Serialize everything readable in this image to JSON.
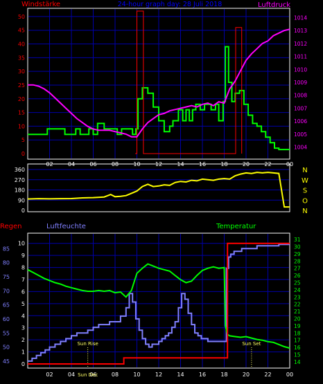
{
  "header": {
    "left_label": "Windstärke",
    "title": "24-hour graph day: 28 Juli 2018",
    "right_label": "Luftdruck"
  },
  "colors": {
    "background": "#000000",
    "frame": "#ffffff",
    "grid": "#0000aa",
    "wind": "#00ff00",
    "gust": "#ff0000",
    "pressure": "#ff00ff",
    "direction": "#ffff00",
    "direction_labels": "#ffff00",
    "rain": "#ff0000",
    "humidity": "#8080ff",
    "temperature": "#00ff00",
    "temperature_axis": "#00ff00",
    "left_axis_red": "#ff0000",
    "sun_marker": "#ffff66",
    "title": "#0000ff"
  },
  "bottom_header": {
    "rain_label": "Regen",
    "humidity_label": "Luftfeuchte",
    "temperature_label": "Temperatur"
  },
  "time_ticks": [
    "02",
    "04",
    "06",
    "08",
    "10",
    "12",
    "14",
    "16",
    "18",
    "20",
    "22",
    "00"
  ],
  "sun_labels": {
    "sun_rise": "Sun Rise",
    "sun_set": "Sun Set",
    "sun_dec": "Sun Dec"
  },
  "chart_data": [
    {
      "type": "line",
      "x_label": "hour",
      "xlim": [
        0,
        24
      ],
      "left_axis": {
        "label": "Windstärke",
        "ticks": [
          0,
          5,
          10,
          15,
          20,
          25,
          30,
          35,
          40,
          45,
          50
        ],
        "ylim": [
          0,
          52
        ]
      },
      "right_axis": {
        "label": "Luftdruck",
        "ticks": [
          1004,
          1005,
          1006,
          1007,
          1008,
          1009,
          1010,
          1011,
          1012,
          1013,
          1014
        ],
        "ylim": [
          1003.5,
          1014.5
        ]
      },
      "series": [
        {
          "name": "wind",
          "axis": "left",
          "step": true,
          "x": [
            0,
            1.8,
            3.4,
            4.4,
            4.8,
            5.6,
            6.0,
            6.4,
            7.0,
            8.2,
            8.6,
            9.6,
            9.9,
            10.1,
            10.5,
            11.0,
            11.5,
            12.0,
            12.5,
            13.0,
            13.3,
            13.8,
            14.2,
            14.5,
            14.8,
            15.1,
            15.4,
            15.8,
            16.2,
            16.8,
            17.2,
            17.5,
            17.9,
            18.1,
            18.4,
            18.7,
            19.0,
            19.4,
            19.8,
            20.2,
            20.6,
            21.0,
            21.4,
            21.8,
            22.2,
            22.6,
            23.0,
            24.0
          ],
          "values": [
            7,
            9,
            7,
            9,
            7,
            9,
            7,
            11,
            9,
            7,
            9,
            7,
            9,
            20,
            24,
            22,
            17,
            12,
            8,
            10,
            12,
            16,
            12,
            16,
            12,
            16,
            18,
            16,
            18,
            16,
            18,
            12,
            19,
            39,
            26,
            19,
            22,
            23,
            18,
            14,
            11,
            10,
            8,
            6,
            4,
            2,
            1.5,
            1.5
          ]
        },
        {
          "name": "gust",
          "axis": "left",
          "step": true,
          "x": [
            9.85,
            10.0,
            10.45,
            10.6,
            18.85,
            19.05,
            19.45,
            19.6
          ],
          "values": [
            0,
            52,
            52,
            0,
            0,
            46,
            46,
            0
          ]
        },
        {
          "name": "pressure",
          "axis": "right",
          "x": [
            0,
            0.5,
            1,
            1.5,
            2,
            2.5,
            3,
            3.5,
            4,
            4.5,
            5,
            5.5,
            6,
            6.5,
            7,
            7.5,
            8,
            8.5,
            9,
            9.5,
            10,
            10.5,
            11,
            11.5,
            12,
            12.5,
            13,
            13.5,
            14,
            14.5,
            15,
            15.5,
            16,
            16.5,
            17,
            17.5,
            18,
            18.5,
            19,
            19.5,
            20,
            20.5,
            21,
            21.5,
            22,
            22.5,
            23,
            23.5,
            24
          ],
          "values": [
            1008.8,
            1008.8,
            1008.7,
            1008.5,
            1008.2,
            1007.8,
            1007.4,
            1007.0,
            1006.6,
            1006.2,
            1005.9,
            1005.6,
            1005.4,
            1005.3,
            1005.3,
            1005.3,
            1005.2,
            1005.1,
            1005.0,
            1004.8,
            1004.8,
            1005.4,
            1005.9,
            1006.2,
            1006.5,
            1006.6,
            1006.8,
            1006.9,
            1007.0,
            1007.1,
            1007.2,
            1007.1,
            1007.3,
            1007.4,
            1007.2,
            1007.5,
            1007.4,
            1008.5,
            1009.1,
            1009.9,
            1010.7,
            1011.2,
            1011.6,
            1012.0,
            1012.2,
            1012.6,
            1012.8,
            1013.0,
            1013.1
          ]
        }
      ]
    },
    {
      "type": "line",
      "x_label": "hour",
      "xlim": [
        0,
        24
      ],
      "left_axis": {
        "ticks": [
          0,
          90,
          180,
          270,
          360
        ],
        "ylim": [
          0,
          360
        ]
      },
      "right_labels": [
        "N",
        "W",
        "S",
        "O",
        "N"
      ],
      "series": [
        {
          "name": "wind direction",
          "x": [
            0,
            1.0,
            2.0,
            3.0,
            4.0,
            5.0,
            6.0,
            7.0,
            7.6,
            8.0,
            8.5,
            9.0,
            9.5,
            10.0,
            10.5,
            11.0,
            11.5,
            12.0,
            12.5,
            13.0,
            13.5,
            14.0,
            14.5,
            15.0,
            15.5,
            16.0,
            16.5,
            17.0,
            17.5,
            18.0,
            18.5,
            19.0,
            19.5,
            20.0,
            20.5,
            21.0,
            21.5,
            22.0,
            22.5,
            23.0,
            23.5,
            24.0
          ],
          "values": [
            100,
            103,
            101,
            103,
            104,
            110,
            112,
            118,
            140,
            120,
            123,
            130,
            150,
            170,
            210,
            230,
            210,
            215,
            225,
            220,
            245,
            255,
            250,
            265,
            260,
            275,
            270,
            265,
            275,
            280,
            275,
            305,
            320,
            330,
            325,
            335,
            330,
            335,
            330,
            325,
            30,
            30
          ]
        }
      ]
    },
    {
      "type": "line",
      "x_label": "hour",
      "xlim": [
        0,
        24
      ],
      "left_axis_rain": {
        "label": "Regen",
        "ticks": [
          0,
          1,
          2,
          3,
          4,
          5,
          6,
          7,
          8,
          9,
          10
        ],
        "ylim": [
          0,
          10.5
        ]
      },
      "left_axis_humidity": {
        "label": "Luftfeuchte",
        "ticks": [
          45,
          50,
          55,
          60,
          65,
          70,
          75,
          80,
          85
        ],
        "ylim": [
          44,
          89
        ]
      },
      "right_axis": {
        "label": "Temperatur",
        "ticks": [
          14,
          15,
          16,
          17,
          18,
          19,
          20,
          21,
          22,
          23,
          24,
          25,
          26,
          27,
          28,
          29,
          30,
          31
        ],
        "ylim": [
          13.7,
          31.3
        ]
      },
      "sun_markers": {
        "sun_rise": 5.5,
        "sun_set": 20.5
      },
      "series": [
        {
          "name": "rain",
          "axis": "rain",
          "step": true,
          "x": [
            0,
            8.8,
            18.1,
            18.3,
            24
          ],
          "values": [
            0,
            0.5,
            0.5,
            10,
            10
          ]
        },
        {
          "name": "humidity",
          "axis": "humidity",
          "step": true,
          "x": [
            0,
            0.4,
            0.8,
            1.2,
            1.6,
            2.0,
            2.5,
            3.0,
            3.5,
            4.0,
            4.5,
            5.0,
            5.5,
            6.0,
            6.5,
            7.0,
            7.5,
            8.0,
            8.5,
            9.0,
            9.3,
            9.6,
            9.9,
            10.2,
            10.5,
            10.8,
            11.1,
            11.4,
            11.7,
            12.0,
            12.3,
            12.6,
            12.9,
            13.2,
            13.5,
            13.8,
            14.1,
            14.4,
            14.7,
            15.0,
            15.3,
            15.6,
            15.9,
            16.2,
            16.5,
            16.8,
            17.1,
            17.4,
            17.7,
            18.0,
            18.2,
            18.4,
            18.6,
            18.9,
            19.2,
            19.6,
            20.0,
            20.5,
            21.0,
            21.5,
            22.0,
            22.5,
            23.0,
            23.5,
            24.0
          ],
          "values": [
            45,
            46,
            47,
            48,
            49,
            50,
            51,
            52,
            53,
            54,
            55,
            55,
            56,
            57,
            58,
            58,
            59,
            59,
            61,
            64,
            69,
            66,
            60,
            56,
            53,
            51,
            50,
            51,
            51,
            52,
            53,
            54,
            55,
            57,
            59,
            64,
            69,
            67,
            62,
            58,
            55,
            54,
            53,
            53,
            52,
            52,
            52,
            52,
            52,
            52,
            78,
            82,
            83,
            84,
            84,
            85,
            85,
            85,
            86,
            86,
            86,
            86,
            86.5,
            86.5,
            86.5
          ]
        },
        {
          "name": "temperature",
          "axis": "temperature",
          "x": [
            0,
            0.5,
            1,
            1.5,
            2,
            2.5,
            3,
            3.5,
            4,
            4.5,
            5,
            5.5,
            6,
            6.5,
            7,
            7.5,
            8,
            8.5,
            9,
            9.5,
            10,
            10.5,
            11,
            11.5,
            12,
            12.5,
            13,
            13.5,
            14,
            14.5,
            15,
            15.5,
            16,
            16.5,
            17,
            17.5,
            18,
            18.1,
            18.3,
            18.5,
            19,
            19.5,
            20,
            20.5,
            21,
            21.5,
            22,
            22.5,
            23,
            23.5,
            24
          ],
          "values": [
            26.8,
            26.4,
            26.0,
            25.6,
            25.3,
            25.0,
            24.8,
            24.5,
            24.3,
            24.1,
            23.9,
            23.8,
            23.8,
            23.9,
            23.8,
            23.9,
            23.6,
            23.7,
            23.0,
            23.9,
            26.3,
            27.0,
            27.6,
            27.3,
            27.0,
            26.8,
            26.6,
            26.0,
            25.4,
            25.0,
            25.2,
            26.0,
            26.7,
            27.0,
            27.2,
            27.0,
            27.1,
            19.0,
            17.8,
            17.6,
            17.5,
            17.4,
            17.5,
            17.3,
            17.1,
            17.0,
            16.8,
            16.7,
            16.4,
            16.1,
            15.9
          ]
        }
      ]
    }
  ]
}
